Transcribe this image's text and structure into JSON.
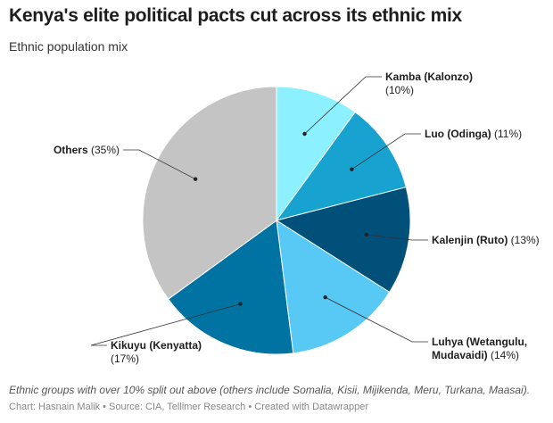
{
  "header": {
    "title": "Kenya's elite political pacts cut across its ethnic mix",
    "subtitle": "Ethnic population mix"
  },
  "footer": {
    "note": "Ethnic groups with over 10% split out above (others include Somalia, Kisii, Mijikenda, Meru, Turkana, Maasai).",
    "credits": "Chart: Hasnain Malik • Source: CIA, Tellimer Research • Created with Datawrapper"
  },
  "chart_data": {
    "type": "pie",
    "title": "Kenya's elite political pacts cut across its ethnic mix",
    "subtitle": "Ethnic population mix",
    "slices": [
      {
        "name": "Kamba (Kalonzo)",
        "value": 10,
        "value_label": "(10%)",
        "color": "#8cf0ff"
      },
      {
        "name": "Luo (Odinga)",
        "value": 11,
        "value_label": "(11%)",
        "color": "#17a2d0"
      },
      {
        "name": "Kalenjin (Ruto)",
        "value": 13,
        "value_label": "(13%)",
        "color": "#00507a"
      },
      {
        "name": "Luhya (Wetangulu, Mudavaidi)",
        "value": 14,
        "value_label": "(14%)",
        "color": "#58c9f5"
      },
      {
        "name": "Kikuyu (Kenyatta)",
        "value": 17,
        "value_label": "(17%)",
        "color": "#0073a3"
      },
      {
        "name": "Others",
        "value": 35,
        "value_label": "(35%)",
        "color": "#c4c4c4"
      }
    ],
    "start_angle": "12 o'clock",
    "direction": "clockwise",
    "labels": "outside with leader lines"
  }
}
